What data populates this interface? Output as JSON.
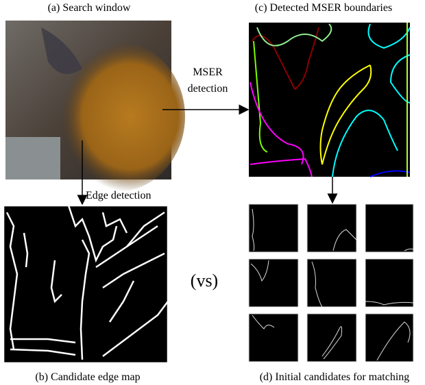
{
  "panels": {
    "a": {
      "caption": "(a) Search window"
    },
    "b": {
      "caption": "(b) Candidate edge map"
    },
    "c": {
      "caption": "(c) Detected MSER boundaries"
    },
    "d": {
      "caption": "(d) Initial candidates for matching"
    }
  },
  "arrows": {
    "mser": {
      "lines": [
        "MSER",
        "detection"
      ]
    },
    "edge": {
      "label": "Edge detection"
    }
  },
  "comparison": "(vs)"
}
